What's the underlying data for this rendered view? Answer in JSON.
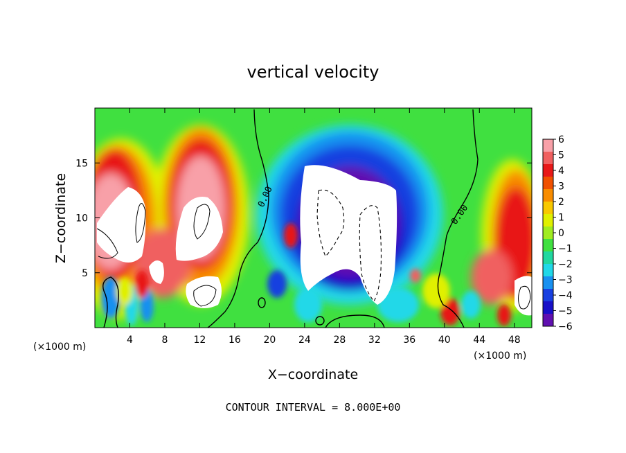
{
  "chart_data": {
    "type": "heatmap",
    "title": "vertical velocity",
    "xlabel": "X−coordinate",
    "ylabel": "Z−coordinate",
    "x_scale_note": "(×1000 m)",
    "z_scale_note": "(×1000 m)",
    "footer": "CONTOUR INTERVAL = 8.000E+00",
    "contour_label": "0.00",
    "xlim": [
      0,
      50
    ],
    "ylim": [
      0,
      20
    ],
    "x_ticks": [
      4,
      8,
      12,
      16,
      20,
      24,
      28,
      32,
      36,
      40,
      44,
      48
    ],
    "y_ticks": [
      5,
      10,
      15
    ],
    "colorbar": {
      "ticks": [
        "6",
        "5",
        "4",
        "3",
        "2",
        "1",
        "0",
        "−1",
        "−2",
        "−3",
        "−4",
        "−5",
        "−6"
      ],
      "colors": [
        "#f8a0a8",
        "#f06060",
        "#e81818",
        "#f05000",
        "#f88c00",
        "#f8c800",
        "#e0f000",
        "#a0ec20",
        "#40e040",
        "#20d8a0",
        "#20d8e8",
        "#1890f0",
        "#1840e0",
        "#1810c8",
        "#6010b0"
      ]
    },
    "features": [
      {
        "name": "updraft-core-west-1",
        "x": 2,
        "z": 9.5,
        "value": 6
      },
      {
        "name": "updraft-core-west-2",
        "x": 5.5,
        "z": 9.5,
        "value": 6
      },
      {
        "name": "updraft-core-west-3",
        "x": 12,
        "z": 10,
        "value": 6
      },
      {
        "name": "downdraft-core",
        "x": 30,
        "z": 8,
        "value": -6
      },
      {
        "name": "updraft-core-east",
        "x": 48,
        "z": 3,
        "value": 6
      }
    ]
  }
}
